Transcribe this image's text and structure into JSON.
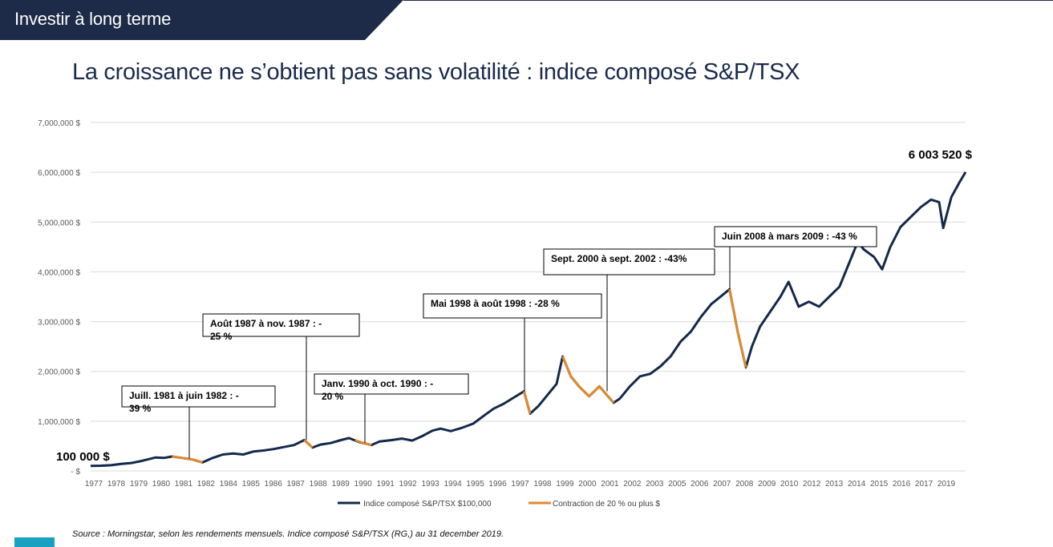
{
  "header": {
    "title": "Investir à long terme"
  },
  "main_title": "La croissance ne s’obtient pas sans volatilité : indice composé S&P/TSX",
  "source": "Source : Morningstar, selon les rendements mensuels. Indice composé S&P/TSX (RG,) au 31 december 2019.",
  "colors": {
    "header_band": "#1d2a48",
    "index_line": "#13294b",
    "contraction": "#e08a2e",
    "grid": "#d9d9d9"
  },
  "chart_data": {
    "type": "line",
    "title": "",
    "xlabel": "",
    "ylabel": "",
    "ylim": [
      0,
      7000000
    ],
    "xlim": [
      1977,
      2020
    ],
    "grid": true,
    "legend_position": "bottom",
    "y_tick_values": [
      0,
      1000000,
      2000000,
      3000000,
      4000000,
      5000000,
      6000000,
      7000000
    ],
    "y_tick_labels": [
      "- $",
      "1,000,000 $",
      "2,000,000 $",
      "3,000,000 $",
      "4,000,000 $",
      "5,000,000 $",
      "6,000,000 $",
      "7,000,000 $"
    ],
    "x_tick_labels": [
      "1977",
      "1978",
      "1979",
      "1980",
      "1981",
      "1982",
      "1984",
      "1985",
      "1986",
      "1987",
      "1988",
      "1989",
      "1990",
      "1991",
      "1992",
      "1993",
      "1994",
      "1995",
      "1996",
      "1997",
      "1998",
      "1999",
      "2000",
      "2001",
      "2002",
      "2003",
      "2005",
      "2006",
      "2007",
      "2008",
      "2009",
      "2010",
      "2012",
      "2013",
      "2014",
      "2015",
      "2016",
      "2017",
      "2019"
    ],
    "start_label": "100 000 $",
    "end_label": "6 003 520 $",
    "series": [
      {
        "name": "Indice composé S&P/TSX   $100,000",
        "points": [
          [
            1977.0,
            100000
          ],
          [
            1977.5,
            105000
          ],
          [
            1978.0,
            115000
          ],
          [
            1978.5,
            140000
          ],
          [
            1979.0,
            160000
          ],
          [
            1979.5,
            200000
          ],
          [
            1979.8,
            230000
          ],
          [
            1980.2,
            270000
          ],
          [
            1980.6,
            260000
          ],
          [
            1981.0,
            290000
          ],
          [
            1981.5,
            260000
          ],
          [
            1982.0,
            230000
          ],
          [
            1982.5,
            170000
          ],
          [
            1983.0,
            260000
          ],
          [
            1983.5,
            330000
          ],
          [
            1984.0,
            350000
          ],
          [
            1984.5,
            330000
          ],
          [
            1985.0,
            390000
          ],
          [
            1985.5,
            410000
          ],
          [
            1986.0,
            440000
          ],
          [
            1986.5,
            480000
          ],
          [
            1987.0,
            520000
          ],
          [
            1987.5,
            620000
          ],
          [
            1987.9,
            470000
          ],
          [
            1988.3,
            530000
          ],
          [
            1988.8,
            560000
          ],
          [
            1989.3,
            620000
          ],
          [
            1989.7,
            660000
          ],
          [
            1990.2,
            580000
          ],
          [
            1990.8,
            520000
          ],
          [
            1991.2,
            590000
          ],
          [
            1991.8,
            620000
          ],
          [
            1992.3,
            650000
          ],
          [
            1992.8,
            610000
          ],
          [
            1993.3,
            700000
          ],
          [
            1993.8,
            810000
          ],
          [
            1994.2,
            850000
          ],
          [
            1994.7,
            800000
          ],
          [
            1995.2,
            860000
          ],
          [
            1995.8,
            950000
          ],
          [
            1996.3,
            1100000
          ],
          [
            1996.8,
            1250000
          ],
          [
            1997.3,
            1350000
          ],
          [
            1997.7,
            1450000
          ],
          [
            1998.3,
            1600000
          ],
          [
            1998.6,
            1150000
          ],
          [
            1999.0,
            1300000
          ],
          [
            1999.5,
            1550000
          ],
          [
            1999.9,
            1750000
          ],
          [
            2000.2,
            2300000
          ],
          [
            2000.6,
            1900000
          ],
          [
            2001.0,
            1700000
          ],
          [
            2001.5,
            1500000
          ],
          [
            2002.0,
            1700000
          ],
          [
            2002.7,
            1370000
          ],
          [
            2003.0,
            1450000
          ],
          [
            2003.5,
            1700000
          ],
          [
            2004.0,
            1900000
          ],
          [
            2004.5,
            1950000
          ],
          [
            2005.0,
            2100000
          ],
          [
            2005.5,
            2300000
          ],
          [
            2006.0,
            2600000
          ],
          [
            2006.5,
            2800000
          ],
          [
            2007.0,
            3100000
          ],
          [
            2007.5,
            3350000
          ],
          [
            2008.4,
            3650000
          ],
          [
            2008.8,
            2800000
          ],
          [
            2009.2,
            2080000
          ],
          [
            2009.5,
            2500000
          ],
          [
            2009.9,
            2900000
          ],
          [
            2010.4,
            3200000
          ],
          [
            2010.9,
            3500000
          ],
          [
            2011.3,
            3800000
          ],
          [
            2011.8,
            3300000
          ],
          [
            2012.3,
            3400000
          ],
          [
            2012.8,
            3300000
          ],
          [
            2013.3,
            3500000
          ],
          [
            2013.8,
            3700000
          ],
          [
            2014.3,
            4200000
          ],
          [
            2014.7,
            4600000
          ],
          [
            2015.0,
            4450000
          ],
          [
            2015.5,
            4300000
          ],
          [
            2015.9,
            4050000
          ],
          [
            2016.3,
            4500000
          ],
          [
            2016.8,
            4900000
          ],
          [
            2017.3,
            5100000
          ],
          [
            2017.8,
            5300000
          ],
          [
            2018.3,
            5450000
          ],
          [
            2018.7,
            5400000
          ],
          [
            2018.9,
            4880000
          ],
          [
            2019.3,
            5500000
          ],
          [
            2019.7,
            5800000
          ],
          [
            2020.0,
            6003520
          ]
        ]
      },
      {
        "name": "Contraction de 20 % ou plus $",
        "segments": [
          [
            [
              1981.0,
              290000
            ],
            [
              1981.5,
              260000
            ],
            [
              1982.0,
              230000
            ],
            [
              1982.5,
              170000
            ]
          ],
          [
            [
              1987.5,
              620000
            ],
            [
              1987.9,
              470000
            ]
          ],
          [
            [
              1990.0,
              620000
            ],
            [
              1990.4,
              560000
            ],
            [
              1990.8,
              520000
            ]
          ],
          [
            [
              1998.3,
              1600000
            ],
            [
              1998.6,
              1150000
            ]
          ],
          [
            [
              2000.2,
              2300000
            ],
            [
              2000.6,
              1900000
            ],
            [
              2001.0,
              1700000
            ],
            [
              2001.5,
              1500000
            ],
            [
              2002.0,
              1700000
            ],
            [
              2002.7,
              1370000
            ]
          ],
          [
            [
              2008.4,
              3650000
            ],
            [
              2008.8,
              2800000
            ],
            [
              2009.2,
              2080000
            ]
          ]
        ]
      }
    ],
    "annotations": [
      {
        "text": "Juill. 1981 à juin 1982 : -39 %",
        "x": 1981.2,
        "y": 250000
      },
      {
        "text": "Août 1987 à nov. 1987 : -25 %",
        "x": 1987.5,
        "y": 620000
      },
      {
        "text": "Janv. 1990 à oct. 1990 : -20 %",
        "x": 1990.3,
        "y": 560000
      },
      {
        "text": "Mai 1998 à août 1998 : -28 %",
        "x": 1998.3,
        "y": 1600000
      },
      {
        "text": "Sept. 2000 à sept. 2002 : -43%",
        "x": 2001.8,
        "y": 1600000
      },
      {
        "text": "Juin 2008 à mars 2009 : -43 %",
        "x": 2008.4,
        "y": 3650000
      }
    ]
  }
}
